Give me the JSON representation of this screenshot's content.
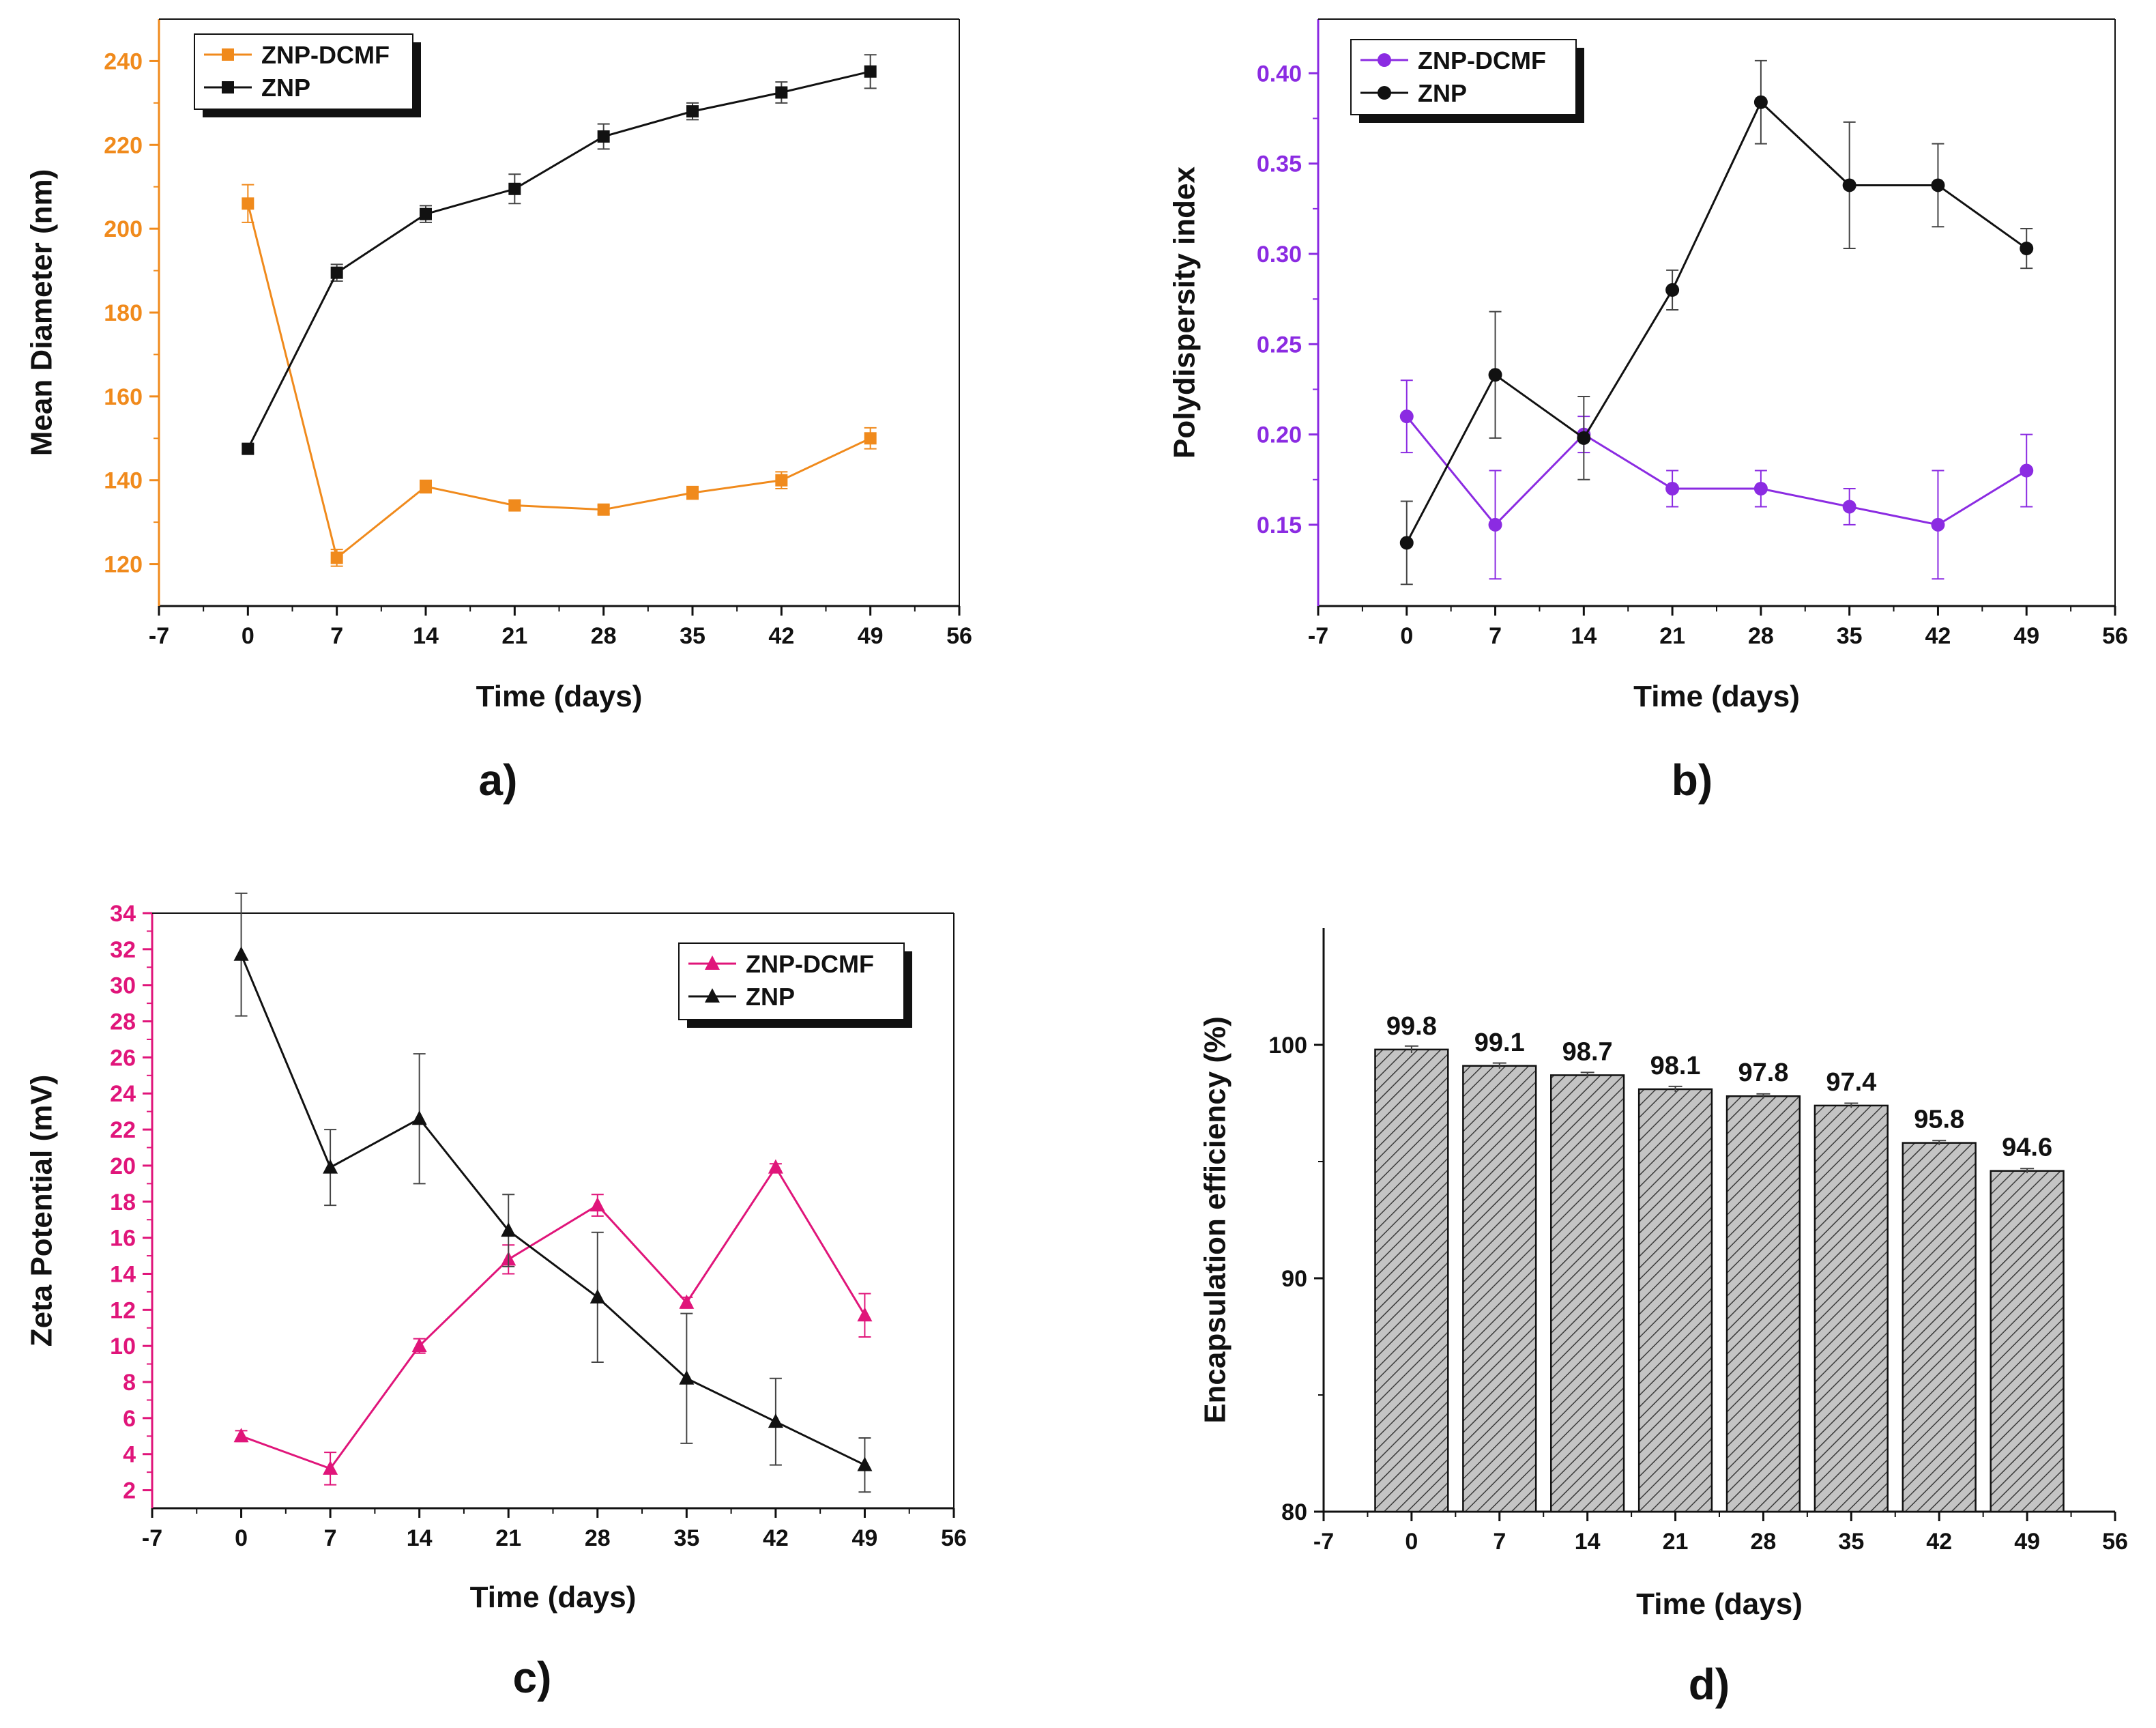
{
  "chart_data": [
    {
      "id": "a",
      "type": "line",
      "panel_label": "a)",
      "xlabel": "Time (days)",
      "ylabel": "Mean Diameter (nm)",
      "xlim": [
        -7,
        56
      ],
      "ylim": [
        110,
        250
      ],
      "xticks": [
        -7,
        0,
        7,
        14,
        21,
        28,
        35,
        42,
        49,
        56
      ],
      "yticks": [
        120,
        140,
        160,
        180,
        200,
        220,
        240
      ],
      "axis_color": "#f08a1c",
      "legend_position": "top-left",
      "x": [
        0,
        7,
        14,
        21,
        28,
        35,
        42,
        49
      ],
      "series": [
        {
          "name": "ZNP-DCMF",
          "color": "#f08a1c",
          "marker": "square",
          "values": [
            206,
            121.5,
            138.5,
            134,
            133,
            137,
            140,
            150
          ],
          "errors": [
            4.5,
            2,
            1.5,
            1,
            1,
            1.5,
            2,
            2.5
          ]
        },
        {
          "name": "ZNP",
          "color": "#111111",
          "marker": "square",
          "values": [
            147.5,
            189.5,
            203.5,
            209.5,
            222,
            228,
            232.5,
            237.5
          ],
          "errors": [
            1,
            2,
            2,
            3.5,
            3,
            2,
            2.5,
            4
          ]
        }
      ]
    },
    {
      "id": "b",
      "type": "line",
      "panel_label": "b)",
      "xlabel": "Time (days)",
      "ylabel": "Polydispersity index",
      "xlim": [
        -7,
        56
      ],
      "ylim": [
        0.105,
        0.43
      ],
      "xticks": [
        -7,
        0,
        7,
        14,
        21,
        28,
        35,
        42,
        49,
        56
      ],
      "yticks": [
        0.15,
        0.2,
        0.25,
        0.3,
        0.35,
        0.4
      ],
      "ytick_labels": [
        "0.15",
        "0.20",
        "0.25",
        "0.30",
        "0.35",
        "0.40"
      ],
      "axis_color": "#8b2be2",
      "legend_position": "top-left",
      "x": [
        0,
        7,
        14,
        21,
        28,
        35,
        42,
        49
      ],
      "series": [
        {
          "name": "ZNP-DCMF",
          "color": "#8b2be2",
          "marker": "circle",
          "values": [
            0.21,
            0.15,
            0.2,
            0.17,
            0.17,
            0.16,
            0.15,
            0.18
          ],
          "errors": [
            0.02,
            0.03,
            0.01,
            0.01,
            0.01,
            0.01,
            0.03,
            0.02
          ]
        },
        {
          "name": "ZNP",
          "color": "#111111",
          "marker": "circle",
          "values": [
            0.14,
            0.233,
            0.198,
            0.28,
            0.384,
            0.338,
            0.338,
            0.303
          ],
          "errors": [
            0.023,
            0.035,
            0.023,
            0.011,
            0.023,
            0.035,
            0.023,
            0.011
          ]
        }
      ]
    },
    {
      "id": "c",
      "type": "line",
      "panel_label": "c)",
      "xlabel": "Time (days)",
      "ylabel": "Zeta Potential (mV)",
      "xlim": [
        -7,
        56
      ],
      "ylim": [
        1,
        34
      ],
      "xticks": [
        -7,
        0,
        7,
        14,
        21,
        28,
        35,
        42,
        49,
        56
      ],
      "yticks": [
        2,
        4,
        6,
        8,
        10,
        12,
        14,
        16,
        18,
        20,
        22,
        24,
        26,
        28,
        30,
        32,
        34
      ],
      "axis_color": "#e0157a",
      "legend_position": "top-right",
      "x": [
        0,
        7,
        14,
        21,
        28,
        35,
        42,
        49
      ],
      "series": [
        {
          "name": "ZNP-DCMF",
          "color": "#e0157a",
          "marker": "triangle",
          "values": [
            5,
            3.2,
            10,
            14.8,
            17.8,
            12.4,
            19.9,
            11.7
          ],
          "errors": [
            0.3,
            0.9,
            0.4,
            0.8,
            0.6,
            0.3,
            0.2,
            1.2
          ]
        },
        {
          "name": "ZNP",
          "color": "#111111",
          "marker": "triangle",
          "values": [
            31.7,
            19.9,
            22.6,
            16.4,
            12.7,
            8.2,
            5.8,
            3.4
          ],
          "errors": [
            3.4,
            2.1,
            3.6,
            2,
            3.6,
            3.6,
            2.4,
            1.5
          ]
        }
      ]
    },
    {
      "id": "d",
      "type": "bar",
      "panel_label": "d)",
      "xlabel": "Time (days)",
      "ylabel": "Encapsulation efficiency (%)",
      "xlim": [
        -7,
        56
      ],
      "ylim": [
        80,
        105
      ],
      "xticks": [
        -7,
        0,
        7,
        14,
        21,
        28,
        35,
        42,
        49,
        56
      ],
      "yticks": [
        80,
        90,
        100
      ],
      "axis_color": "#111111",
      "x": [
        0,
        7,
        14,
        21,
        28,
        35,
        42,
        49
      ],
      "bar_width_days": 5.8,
      "bar_color": "#bdbdbd",
      "series": [
        {
          "name": "Encapsulation efficiency",
          "values": [
            99.8,
            99.1,
            98.7,
            98.1,
            97.8,
            97.4,
            95.8,
            94.6
          ],
          "labels": [
            "99.8",
            "99.1",
            "98.7",
            "98.1",
            "97.8",
            "97.4",
            "95.8",
            "94.6"
          ],
          "errors": [
            0.15,
            0.12,
            0.12,
            0.12,
            0.1,
            0.1,
            0.1,
            0.1
          ]
        }
      ]
    }
  ]
}
